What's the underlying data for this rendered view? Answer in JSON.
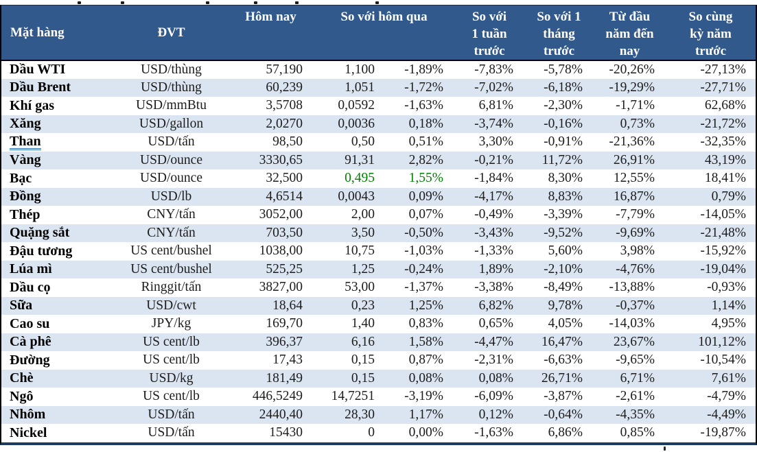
{
  "colors": {
    "header_bg": "#31598C",
    "stripe_bg": "#DBE5F1",
    "positive_green": "#008000",
    "link_underline": "#2E74B5",
    "bottom_border": "#1D3A63"
  },
  "table": {
    "header": {
      "mat_hang": "Mặt hàng",
      "dvt": "ĐVT",
      "hom_nay": "Hôm nay",
      "so_voi_hom_qua": "So với hôm qua",
      "so_voi_1_tuan": "So với\n1 tuần\ntrước",
      "so_voi_1_thang": "So với 1\ntháng\ntrước",
      "tu_dau_nam": "Từ đầu\nnăm đến\nnay",
      "so_cung_ky": "So cùng\nkỳ năm\ntrước"
    },
    "rows": [
      {
        "name": "Dầu WTI",
        "unit": "USD/thùng",
        "today": "57,190",
        "change": "1,100",
        "pct_day": "-1,89%",
        "pct_week": "-7,83%",
        "pct_month": "-5,78%",
        "pct_ytd": "-20,26%",
        "pct_yoy": "-27,13%"
      },
      {
        "name": "Dầu Brent",
        "unit": "USD/thùng",
        "today": "60,239",
        "change": "1,051",
        "pct_day": "-1,72%",
        "pct_week": "-7,02%",
        "pct_month": "-6,18%",
        "pct_ytd": "-19,29%",
        "pct_yoy": "-27,71%"
      },
      {
        "name": "Khí gas",
        "unit": "USD/mmBtu",
        "today": "3,5708",
        "change": "0,0592",
        "pct_day": "-1,63%",
        "pct_week": "6,81%",
        "pct_month": "-2,30%",
        "pct_ytd": "-1,71%",
        "pct_yoy": "62,68%"
      },
      {
        "name": "Xăng",
        "unit": "USD/gallon",
        "today": "2,0270",
        "change": "0,0036",
        "pct_day": "0,18%",
        "pct_week": "-3,74%",
        "pct_month": "-0,16%",
        "pct_ytd": "0,73%",
        "pct_yoy": "-21,72%"
      },
      {
        "name": "Than",
        "unit": "USD/tấn",
        "today": "98,50",
        "change": "0,50",
        "pct_day": "0,51%",
        "pct_week": "3,30%",
        "pct_month": "-0,91%",
        "pct_ytd": "-21,36%",
        "pct_yoy": "-32,35%",
        "link": true
      },
      {
        "name": "Vàng",
        "unit": "USD/ounce",
        "today": "3330,65",
        "change": "91,31",
        "pct_day": "2,82%",
        "pct_week": "-0,21%",
        "pct_month": "11,72%",
        "pct_ytd": "26,91%",
        "pct_yoy": "43,19%"
      },
      {
        "name": "Bạc",
        "unit": "USD/ounce",
        "today": "32,500",
        "change": "0,495",
        "pct_day": "1,55%",
        "pct_week": "-1,84%",
        "pct_month": "8,30%",
        "pct_ytd": "12,55%",
        "pct_yoy": "18,41%",
        "green": true
      },
      {
        "name": "Đồng",
        "unit": "USD/lb",
        "today": "4,6514",
        "change": "0,0043",
        "pct_day": "0,09%",
        "pct_week": "-4,17%",
        "pct_month": "8,83%",
        "pct_ytd": "16,87%",
        "pct_yoy": "0,79%"
      },
      {
        "name": "Thép",
        "unit": "CNY/tấn",
        "today": "3052,00",
        "change": "2,00",
        "pct_day": "0,07%",
        "pct_week": "-0,49%",
        "pct_month": "-3,39%",
        "pct_ytd": "-7,79%",
        "pct_yoy": "-14,05%"
      },
      {
        "name": "Quặng sắt",
        "unit": "CNY/tấn",
        "today": "703,50",
        "change": "3,50",
        "pct_day": "-0,50%",
        "pct_week": "-3,43%",
        "pct_month": "-9,52%",
        "pct_ytd": "-9,69%",
        "pct_yoy": "-21,48%"
      },
      {
        "name": "Đậu tương",
        "unit": "US cent/bushel",
        "today": "1038,00",
        "change": "10,75",
        "pct_day": "-1,03%",
        "pct_week": "-1,33%",
        "pct_month": "5,60%",
        "pct_ytd": "3,98%",
        "pct_yoy": "-15,92%"
      },
      {
        "name": "Lúa mì",
        "unit": "US cent/bushel",
        "today": "525,25",
        "change": "1,25",
        "pct_day": "-0,24%",
        "pct_week": "1,89%",
        "pct_month": "-2,10%",
        "pct_ytd": "-4,76%",
        "pct_yoy": "-19,04%"
      },
      {
        "name": "Dầu cọ",
        "unit": "Ringgit/tấn",
        "today": "3827,00",
        "change": "53,00",
        "pct_day": "-1,37%",
        "pct_week": "-3,38%",
        "pct_month": "-8,49%",
        "pct_ytd": "-13,88%",
        "pct_yoy": "-0,93%"
      },
      {
        "name": "Sữa",
        "unit": "USD/cwt",
        "today": "18,64",
        "change": "0,23",
        "pct_day": "1,25%",
        "pct_week": "6,82%",
        "pct_month": "9,78%",
        "pct_ytd": "-0,37%",
        "pct_yoy": "1,14%"
      },
      {
        "name": "Cao su",
        "unit": "JPY/kg",
        "today": "169,70",
        "change": "1,40",
        "pct_day": "0,83%",
        "pct_week": "0,65%",
        "pct_month": "4,05%",
        "pct_ytd": "-14,03%",
        "pct_yoy": "4,95%"
      },
      {
        "name": "Cà phê",
        "unit": "US cent/lb",
        "today": "396,37",
        "change": "6,16",
        "pct_day": "1,58%",
        "pct_week": "-4,47%",
        "pct_month": "16,47%",
        "pct_ytd": "23,67%",
        "pct_yoy": "101,12%"
      },
      {
        "name": "Đường",
        "unit": "US cent/lb",
        "today": "17,43",
        "change": "0,15",
        "pct_day": "0,87%",
        "pct_week": "-2,31%",
        "pct_month": "-6,63%",
        "pct_ytd": "-9,65%",
        "pct_yoy": "-10,54%"
      },
      {
        "name": "Chè",
        "unit": "USD/kg",
        "today": "181,49",
        "change": "0,15",
        "pct_day": "0,08%",
        "pct_week": "0,08%",
        "pct_month": "26,71%",
        "pct_ytd": "6,71%",
        "pct_yoy": "7,61%"
      },
      {
        "name": "Ngô",
        "unit": "US cent/lb",
        "today": "446,5249",
        "change": "14,7251",
        "pct_day": "-3,19%",
        "pct_week": "-6,09%",
        "pct_month": "-3,87%",
        "pct_ytd": "-2,61%",
        "pct_yoy": "-4,79%"
      },
      {
        "name": "Nhôm",
        "unit": "USD/tấn",
        "today": "2440,40",
        "change": "28,30",
        "pct_day": "1,17%",
        "pct_week": "0,12%",
        "pct_month": "-0,64%",
        "pct_ytd": "-4,35%",
        "pct_yoy": "-4,49%"
      },
      {
        "name": "Nickel",
        "unit": "USD/tấn",
        "today": "15430",
        "change": "0",
        "pct_day": "0,00%",
        "pct_week": "-1,63%",
        "pct_month": "6,86%",
        "pct_ytd": "0,85%",
        "pct_yoy": "-19,87%"
      }
    ]
  }
}
